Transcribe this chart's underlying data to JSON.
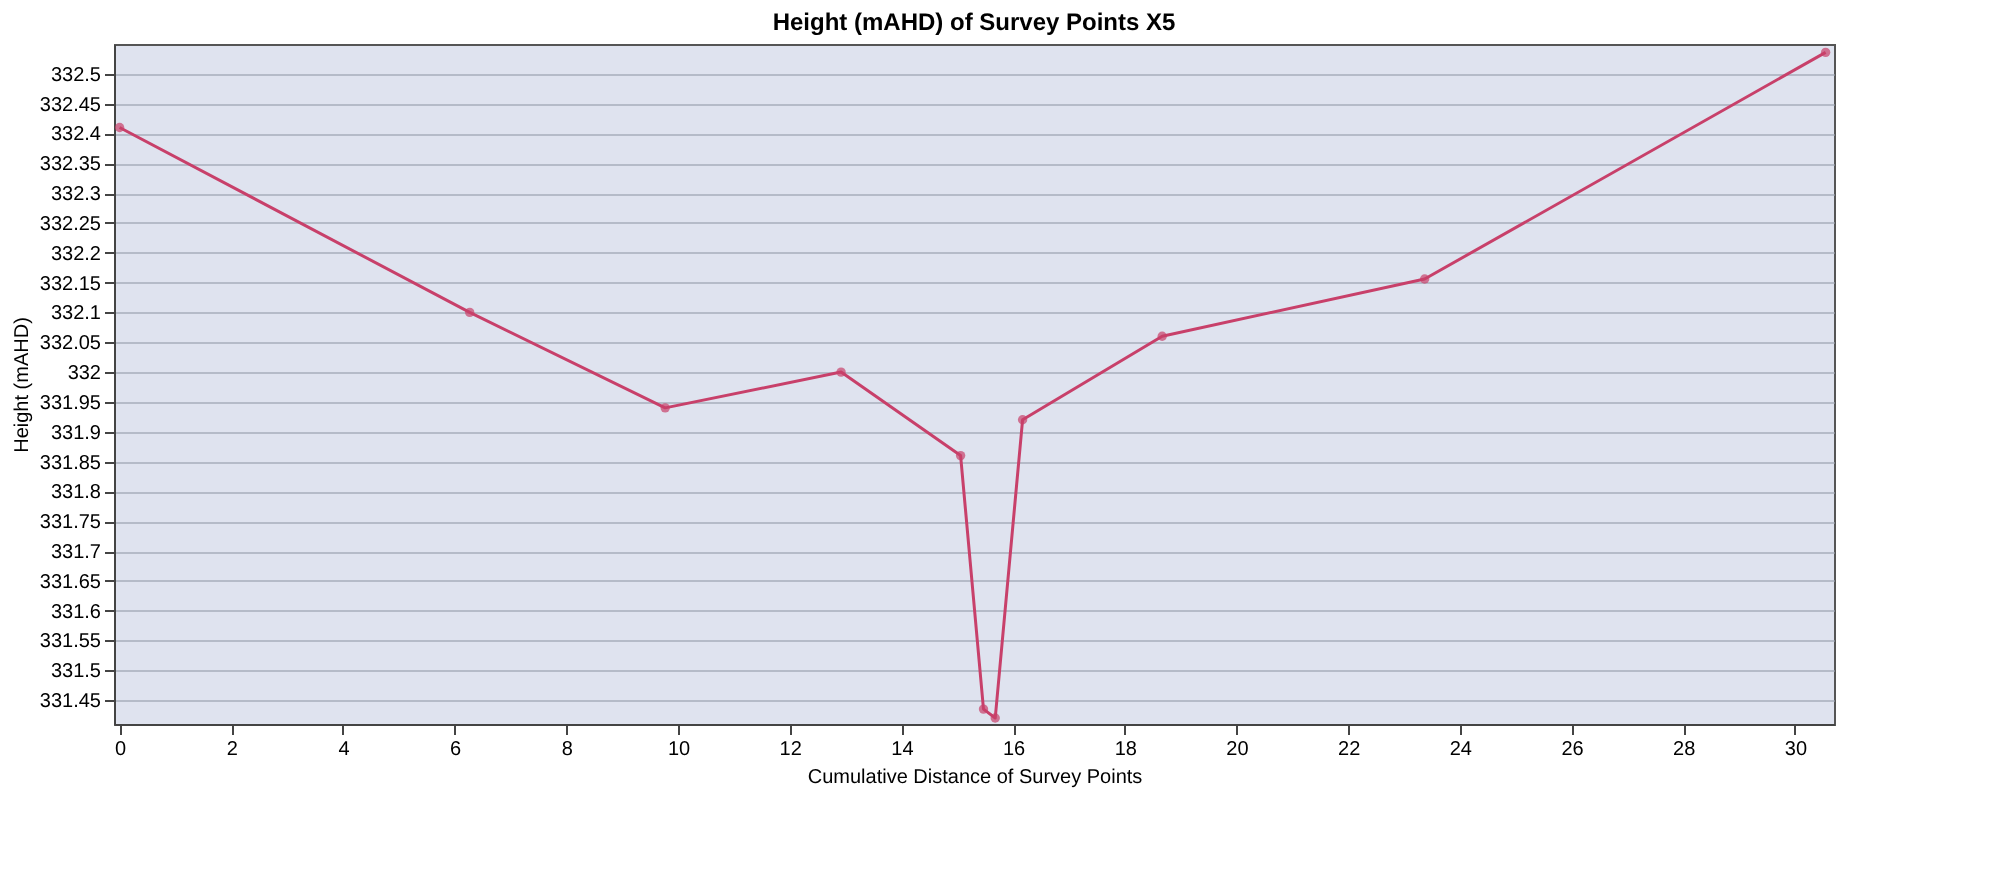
{
  "chart_data": {
    "type": "line",
    "title": "Height (mAHD) of Survey Points X5",
    "xlabel": "Cumulative Distance of Survey Points",
    "ylabel": "Height (mAHD)",
    "x": [
      0,
      6.27,
      9.77,
      12.92,
      15.06,
      15.47,
      15.68,
      16.17,
      18.67,
      23.37,
      30.55
    ],
    "series": [
      {
        "color": "#c8406a",
        "values": [
          332.41,
          332.1,
          331.94,
          332.0,
          331.86,
          331.435,
          331.42,
          331.92,
          332.06,
          332.156,
          332.536
        ]
      }
    ],
    "xlim": [
      -0.1,
      30.7
    ],
    "xticks": [
      0,
      2,
      4,
      6,
      8,
      10,
      12,
      14,
      16,
      18,
      20,
      22,
      24,
      26,
      28,
      30
    ],
    "ylim": [
      331.41,
      332.55
    ],
    "yticks": [
      331.45,
      331.5,
      331.55,
      331.6,
      331.65,
      331.7,
      331.75,
      331.8,
      331.85,
      331.9,
      331.95,
      332,
      332.05,
      332.1,
      332.15,
      332.2,
      332.25,
      332.3,
      332.35,
      332.4,
      332.45,
      332.5
    ],
    "grid": "y",
    "marker": "circle",
    "line_style": "solid"
  }
}
